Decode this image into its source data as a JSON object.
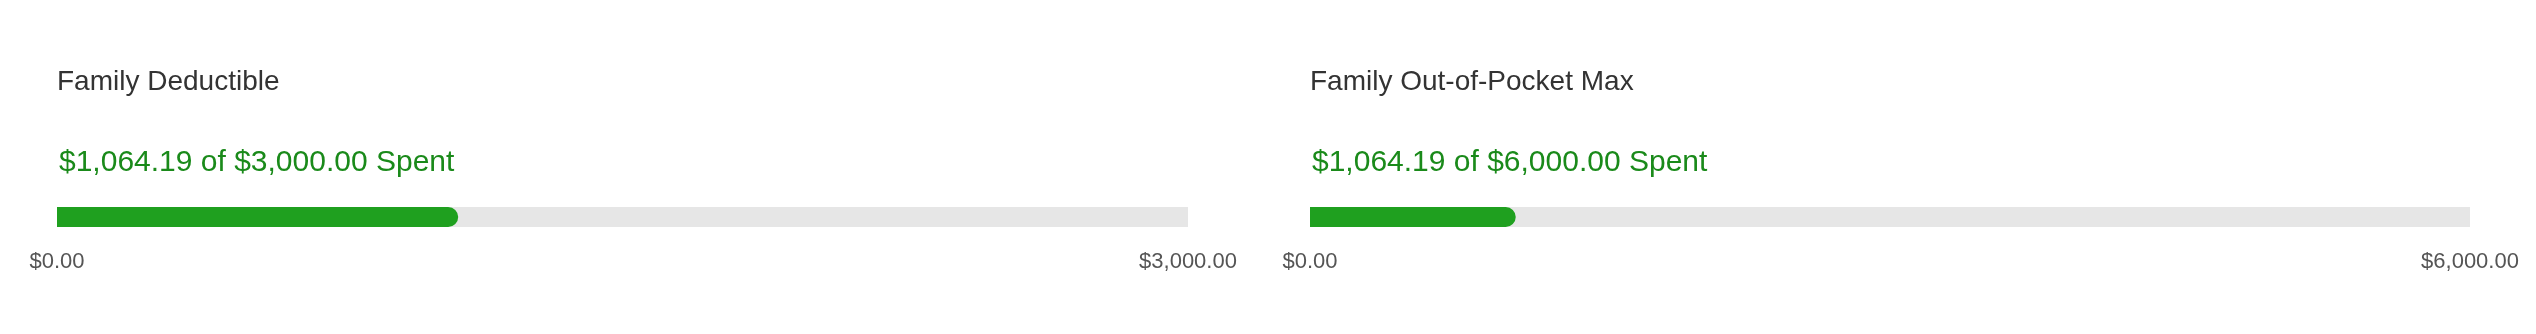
{
  "chart_data": [
    {
      "type": "bar",
      "orientation": "horizontal",
      "title": "Family Deductible",
      "subtitle": "$1,064.19 of $3,000.00 Spent",
      "categories": [
        null
      ],
      "values": [
        1064.19
      ],
      "color": "#1fa01f",
      "xlim": [
        0,
        3000
      ],
      "xticks": [
        {
          "value": 0,
          "label": "$0.00"
        },
        {
          "value": 3000,
          "label": "$3,000.00"
        }
      ],
      "legend": false
    },
    {
      "type": "bar",
      "orientation": "horizontal",
      "title": "Family Out-of-Pocket Max",
      "subtitle": "$1,064.19 of $6,000.00 Spent",
      "categories": [
        null
      ],
      "values": [
        1064.19
      ],
      "color": "#1fa01f",
      "xlim": [
        0,
        6000
      ],
      "xticks": [
        {
          "value": 0,
          "label": "$0.00"
        },
        {
          "value": 6000,
          "label": "$6,000.00"
        }
      ],
      "legend": false
    }
  ]
}
